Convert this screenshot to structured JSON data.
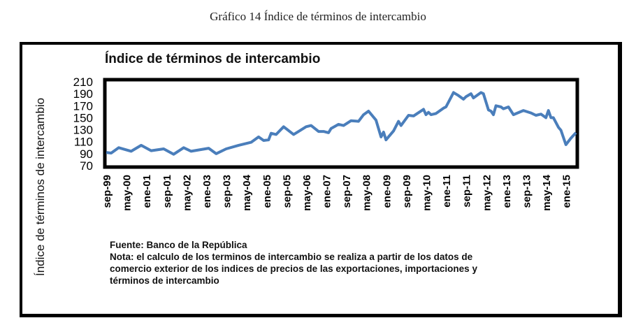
{
  "figure_title": "Gráfico 14 Índice de términos de intercambio",
  "notes": {
    "source": "Fuente: Banco de la República",
    "lines": [
      "Nota: el calculo de los terminos de intercambio se realiza a partir de los datos de",
      "comercio exterior  de los indices de precios de las exportaciones, importaciones y",
      "términos de intercambio"
    ]
  },
  "chart_data": {
    "type": "line",
    "title": "Índice de términos de intercambio",
    "xlabel": "",
    "ylabel": "Índice de términos de intercambio",
    "ylim": [
      70,
      210
    ],
    "yticks": [
      70,
      90,
      110,
      130,
      150,
      170,
      190,
      210
    ],
    "x_unit": "months since sep-99",
    "xlim": [
      0,
      188
    ],
    "xtick_labels": [
      "sep-99",
      "may-00",
      "ene-01",
      "sep-01",
      "may-02",
      "ene-03",
      "sep-03",
      "may-04",
      "ene-05",
      "sep-05",
      "may-06",
      "ene-07",
      "sep-07",
      "may-08",
      "ene-09",
      "sep-09",
      "may-10",
      "ene-11",
      "sep-11",
      "may-12",
      "ene-13",
      "sep-13",
      "may-14",
      "ene-15"
    ],
    "xtick_step_months": 8,
    "grid": false,
    "series": [
      {
        "name": "Índice de términos de intercambio",
        "color": "#4a7ebb",
        "points": [
          [
            0,
            92
          ],
          [
            2,
            91
          ],
          [
            5,
            100
          ],
          [
            10,
            94
          ],
          [
            14,
            104
          ],
          [
            18,
            95
          ],
          [
            23,
            98
          ],
          [
            27,
            89
          ],
          [
            31,
            100
          ],
          [
            34,
            94
          ],
          [
            41,
            99
          ],
          [
            44,
            90
          ],
          [
            48,
            98
          ],
          [
            53,
            104
          ],
          [
            58,
            109
          ],
          [
            61,
            118
          ],
          [
            63,
            112
          ],
          [
            65,
            113
          ],
          [
            66,
            124
          ],
          [
            68,
            122
          ],
          [
            71,
            135
          ],
          [
            75,
            122
          ],
          [
            77,
            127
          ],
          [
            80,
            135
          ],
          [
            82,
            137
          ],
          [
            85,
            127
          ],
          [
            87,
            127
          ],
          [
            89,
            125
          ],
          [
            90,
            132
          ],
          [
            93,
            139
          ],
          [
            95,
            137
          ],
          [
            98,
            145
          ],
          [
            101,
            144
          ],
          [
            103,
            155
          ],
          [
            105,
            161
          ],
          [
            108,
            146
          ],
          [
            110,
            118
          ],
          [
            111,
            126
          ],
          [
            112,
            113
          ],
          [
            115,
            128
          ],
          [
            117,
            144
          ],
          [
            118,
            137
          ],
          [
            121,
            154
          ],
          [
            123,
            153
          ],
          [
            127,
            164
          ],
          [
            128,
            155
          ],
          [
            129,
            159
          ],
          [
            130,
            155
          ],
          [
            132,
            157
          ],
          [
            135,
            166
          ],
          [
            136,
            168
          ],
          [
            139,
            192
          ],
          [
            141,
            187
          ],
          [
            143,
            181
          ],
          [
            144,
            185
          ],
          [
            146,
            190
          ],
          [
            147,
            183
          ],
          [
            150,
            192
          ],
          [
            151,
            190
          ],
          [
            153,
            163
          ],
          [
            154,
            161
          ],
          [
            155,
            155
          ],
          [
            156,
            170
          ],
          [
            158,
            168
          ],
          [
            159,
            165
          ],
          [
            161,
            168
          ],
          [
            163,
            155
          ],
          [
            167,
            162
          ],
          [
            170,
            158
          ],
          [
            172,
            154
          ],
          [
            174,
            156
          ],
          [
            176,
            150
          ],
          [
            177,
            162
          ],
          [
            178,
            150
          ],
          [
            179,
            150
          ],
          [
            181,
            134
          ],
          [
            182,
            129
          ],
          [
            184,
            105
          ],
          [
            186,
            116
          ],
          [
            188,
            125
          ]
        ]
      }
    ]
  }
}
